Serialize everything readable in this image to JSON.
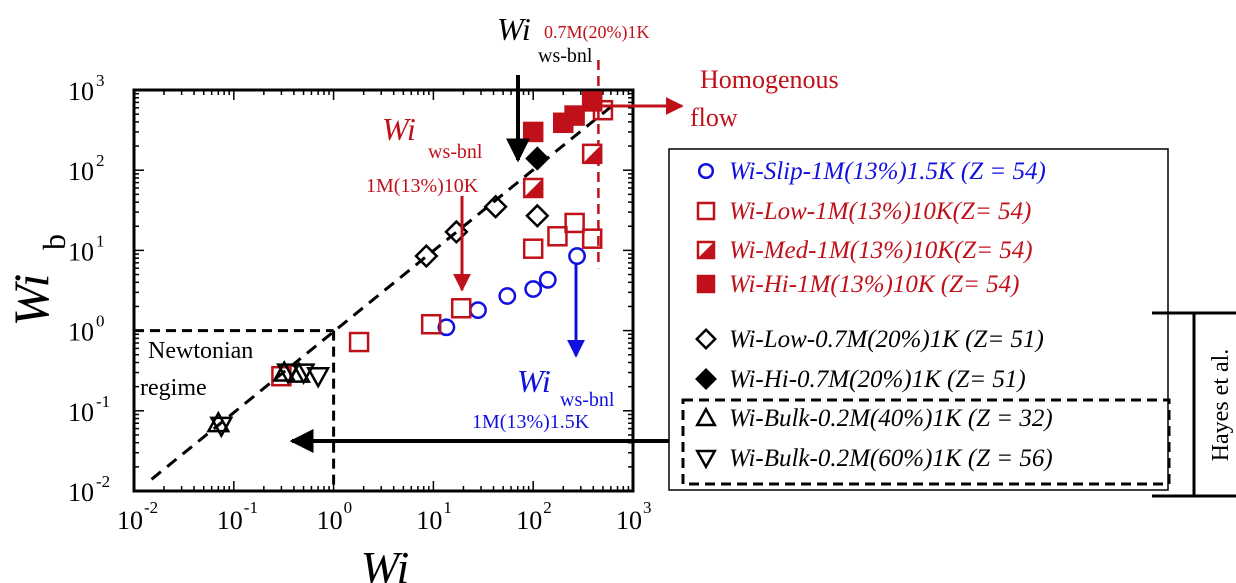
{
  "colors": {
    "blue": "#1010e0",
    "red": "#c0101a",
    "black": "#000000"
  },
  "chart_data": {
    "type": "scatter",
    "xscale": "log",
    "yscale": "log",
    "xlim": [
      0.01,
      1000
    ],
    "ylim": [
      0.01,
      1000
    ],
    "xlabel": "Wi",
    "ylabel": {
      "main": "Wi",
      "sub": "b"
    },
    "x_ticks": [
      {
        "value": 0.01,
        "base": "10",
        "exp": "-2"
      },
      {
        "value": 0.1,
        "base": "10",
        "exp": "-1"
      },
      {
        "value": 1,
        "base": "10",
        "exp": "0"
      },
      {
        "value": 10,
        "base": "10",
        "exp": "1"
      },
      {
        "value": 100,
        "base": "10",
        "exp": "2"
      },
      {
        "value": 1000,
        "base": "10",
        "exp": "3"
      }
    ],
    "y_ticks": [
      {
        "value": 0.01,
        "base": "10",
        "exp": "-2"
      },
      {
        "value": 0.1,
        "base": "10",
        "exp": "-1"
      },
      {
        "value": 1,
        "base": "10",
        "exp": "0"
      },
      {
        "value": 10,
        "base": "10",
        "exp": "1"
      },
      {
        "value": 100,
        "base": "10",
        "exp": "2"
      },
      {
        "value": 1000,
        "base": "10",
        "exp": "3"
      }
    ],
    "series": [
      {
        "name": "Wi-Slip-1M(13%)1.5K (Z = 54)",
        "marker": "circle",
        "fill": "none",
        "color": "#1010e0",
        "points": [
          [
            13.5,
            1.1
          ],
          [
            28,
            1.8
          ],
          [
            55,
            2.7
          ],
          [
            100,
            3.3
          ],
          [
            140,
            4.3
          ],
          [
            275,
            8.5
          ]
        ]
      },
      {
        "name": "Wi-Low-1M(13%)10K(Z= 54)",
        "marker": "square",
        "fill": "none",
        "color": "#c0101a",
        "points": [
          [
            0.3,
            0.27
          ],
          [
            1.8,
            0.72
          ],
          [
            9.5,
            1.2
          ],
          [
            19,
            1.9
          ],
          [
            100,
            10.5
          ],
          [
            175,
            15
          ],
          [
            260,
            22
          ],
          [
            390,
            14
          ],
          [
            500,
            560
          ]
        ]
      },
      {
        "name": "Wi-Med-1M(13%)10K(Z= 54)",
        "marker": "square",
        "fill": "half",
        "color": "#c0101a",
        "points": [
          [
            100,
            60
          ],
          [
            390,
            160
          ]
        ]
      },
      {
        "name": "Wi-Hi-1M(13%)10K (Z= 54)",
        "marker": "square",
        "fill": "full",
        "color": "#c0101a",
        "points": [
          [
            100,
            300
          ],
          [
            200,
            390
          ],
          [
            260,
            480
          ],
          [
            390,
            720
          ]
        ]
      },
      {
        "name": "Wi-Low-0.7M(20%)1K (Z= 51)",
        "marker": "diamond",
        "fill": "none",
        "color": "#000000",
        "points": [
          [
            8.5,
            8.5
          ],
          [
            17,
            17
          ],
          [
            42,
            35
          ],
          [
            110,
            27
          ]
        ]
      },
      {
        "name": "Wi-Hi-0.7M(20%)1K (Z= 51)",
        "marker": "diamond",
        "fill": "full",
        "color": "#000000",
        "points": [
          [
            110,
            140
          ]
        ]
      },
      {
        "name": "Wi-Bulk-0.2M(40%)1K (Z = 32)",
        "marker": "triangle-up",
        "fill": "none",
        "color": "#000000",
        "points": [
          [
            0.07,
            0.07
          ],
          [
            0.32,
            0.3
          ],
          [
            0.45,
            0.29
          ]
        ]
      },
      {
        "name": "Wi-Bulk-0.2M(60%)1K (Z = 56)",
        "marker": "triangle-down",
        "fill": "none",
        "color": "#000000",
        "points": [
          [
            0.075,
            0.065
          ],
          [
            0.35,
            0.3
          ],
          [
            0.5,
            0.3
          ],
          [
            0.7,
            0.27
          ]
        ]
      }
    ],
    "fit_line": [
      [
        0.015,
        0.014
      ],
      [
        700,
        720
      ]
    ],
    "threshold_x": 450,
    "newtonian_box": {
      "x": [
        0.01,
        1
      ],
      "y": [
        0.01,
        1
      ]
    },
    "legend_group_label": "Hayes et al.",
    "annotations": {
      "newtonian": [
        "Newtonian",
        "regime"
      ],
      "homogenous": [
        "Homogenous",
        "flow"
      ],
      "black_label": {
        "main": "Wi",
        "sub": "ws-bnl",
        "sup": "0.7M(20%)1K"
      },
      "red_label": {
        "main": "Wi",
        "sub": "ws-bnl",
        "line2": "1M(13%)10K"
      },
      "blue_label": {
        "main": "Wi",
        "sub": "ws-bnl",
        "line2": "1M(13%)1.5K"
      }
    }
  }
}
